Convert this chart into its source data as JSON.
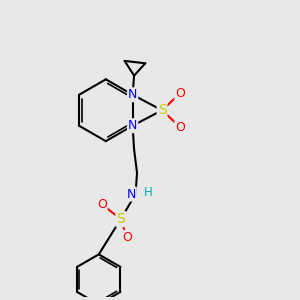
{
  "bg_color": "#e8e8e8",
  "bond_color": "#000000",
  "atom_colors": {
    "N": "#0000ff",
    "S": "#cccc00",
    "O": "#ff0000",
    "H": "#00aaaa",
    "C": "#000000"
  },
  "figsize": [
    3.0,
    3.0
  ],
  "dpi": 100
}
